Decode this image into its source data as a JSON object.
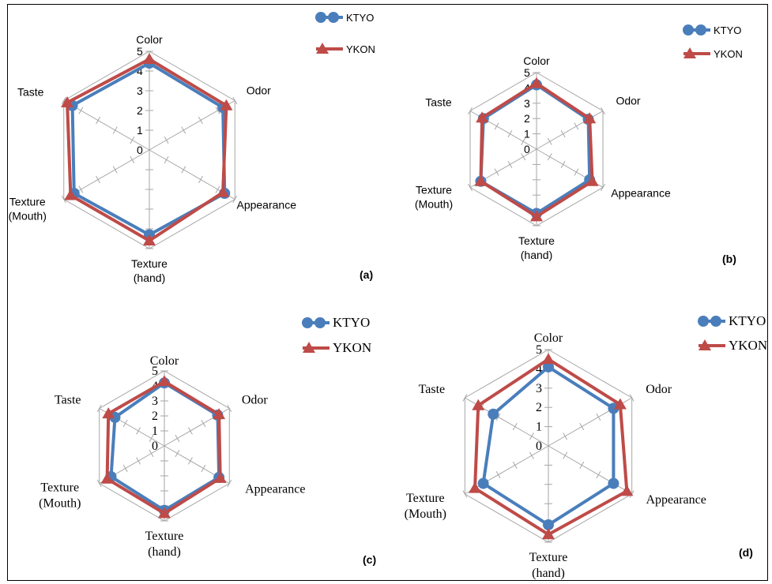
{
  "chart_data": [
    {
      "type": "radar",
      "panel_label": "(a)",
      "categories": [
        "Color",
        "Odor",
        "Appearance",
        "Texture (hand)",
        "Texture (Mouth)",
        "Taste"
      ],
      "category_label_lines": [
        [
          "Color"
        ],
        [
          "Odor"
        ],
        [
          "Appearance"
        ],
        [
          "Texture",
          "(hand)"
        ],
        [
          "Texture",
          "(Mouth)"
        ],
        [
          "Taste"
        ]
      ],
      "rlim": [
        0,
        5
      ],
      "ticks": [
        "0",
        "1",
        "2",
        "3",
        "4",
        "5"
      ],
      "series": [
        {
          "name": "KTYO",
          "values": [
            4.4,
            4.3,
            4.4,
            4.3,
            4.4,
            4.5
          ]
        },
        {
          "name": "YKON",
          "values": [
            4.6,
            4.5,
            4.3,
            4.6,
            4.6,
            4.8
          ]
        }
      ]
    },
    {
      "type": "radar",
      "panel_label": "(b)",
      "categories": [
        "Color",
        "Odor",
        "Appearance",
        "Texture (hand)",
        "Texture (Mouth)",
        "Taste"
      ],
      "category_label_lines": [
        [
          "Color"
        ],
        [
          "Odor"
        ],
        [
          "Appearance"
        ],
        [
          "Texture",
          "(hand)"
        ],
        [
          "Texture",
          "(Mouth)"
        ],
        [
          "Taste"
        ]
      ],
      "rlim": [
        0,
        5
      ],
      "ticks": [
        "0",
        "1",
        "2",
        "3",
        "4",
        "5"
      ],
      "series": [
        {
          "name": "KTYO",
          "values": [
            4.2,
            3.9,
            4.0,
            4.2,
            4.2,
            4.0
          ]
        },
        {
          "name": "YKON",
          "values": [
            4.3,
            4.0,
            4.2,
            4.4,
            4.2,
            4.1
          ]
        }
      ]
    },
    {
      "type": "radar",
      "panel_label": "(c)",
      "categories": [
        "Color",
        "Odor",
        "Appearance",
        "Texture (hand)",
        "Texture (Mouth)",
        "Taste"
      ],
      "category_label_lines": [
        [
          "Color"
        ],
        [
          "Odor"
        ],
        [
          "Appearance"
        ],
        [
          "Texture",
          "(hand)"
        ],
        [
          "Texture",
          "(Mouth)"
        ],
        [
          "Taste"
        ]
      ],
      "rlim": [
        0,
        5
      ],
      "ticks": [
        "0",
        "1",
        "2",
        "3",
        "4",
        "5"
      ],
      "series": [
        {
          "name": "KTYO",
          "values": [
            4.2,
            4.1,
            4.2,
            4.3,
            4.1,
            3.8
          ]
        },
        {
          "name": "YKON",
          "values": [
            4.3,
            4.2,
            4.3,
            4.5,
            4.4,
            4.3
          ]
        }
      ]
    },
    {
      "type": "radar",
      "panel_label": "(d)",
      "categories": [
        "Color",
        "Odor",
        "Appearance",
        "Texture (hand)",
        "Texture (Mouth)",
        "Taste"
      ],
      "category_label_lines": [
        [
          "Color"
        ],
        [
          "Odor"
        ],
        [
          "Appearance"
        ],
        [
          "Texture",
          "(hand)"
        ],
        [
          "Texture",
          "(Mouth)"
        ],
        [
          "Taste"
        ]
      ],
      "rlim": [
        0,
        5
      ],
      "ticks": [
        "0",
        "1",
        "2",
        "3",
        "4",
        "5"
      ],
      "series": [
        {
          "name": "KTYO",
          "values": [
            4.1,
            3.9,
            3.9,
            4.1,
            3.9,
            3.3
          ]
        },
        {
          "name": "YKON",
          "values": [
            4.5,
            4.3,
            4.7,
            4.6,
            4.4,
            4.2
          ]
        }
      ]
    }
  ],
  "colors": {
    "KTYO": "#4a7ebb",
    "YKON": "#be4b48",
    "grid": "#a6a6a6"
  },
  "markers": {
    "KTYO": "circle",
    "YKON": "triangle"
  }
}
